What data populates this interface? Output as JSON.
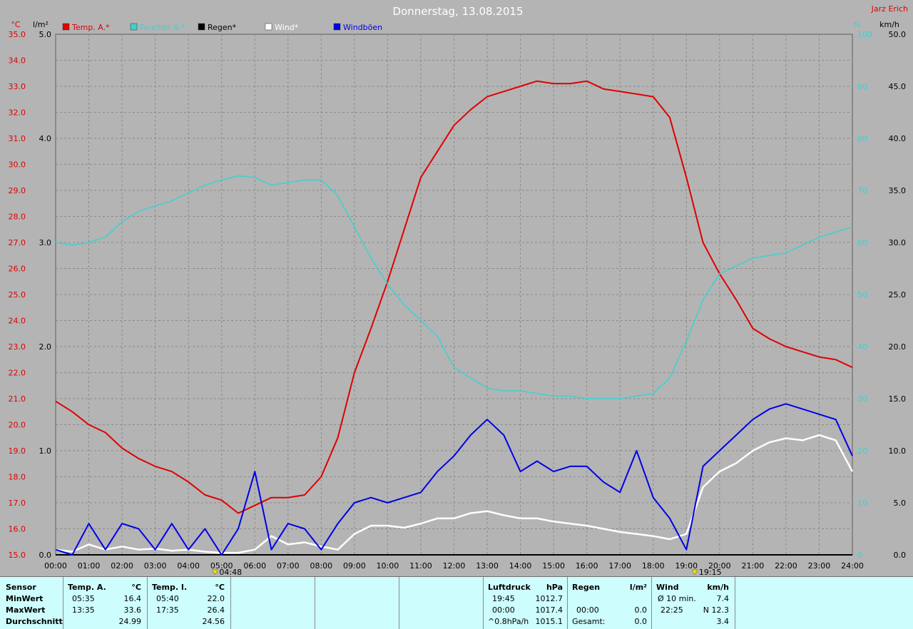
{
  "header": {
    "title": "Donnerstag, 13.08.2015",
    "author": "Jarz Erich",
    "unit_left_outer": "°C",
    "unit_left_inner": "l/m²",
    "unit_right_inner": "%",
    "unit_right_outer": "km/h"
  },
  "colors": {
    "temp": "#e00000",
    "humidity": "#3fd0d0",
    "rain": "#000000",
    "wind": "#ffffff",
    "gusts": "#0000e6",
    "plot_bg": "#b4b4b4",
    "grid": "#8a8a8a"
  },
  "legend": [
    {
      "label": "Temp. A.*",
      "color": "#e00000"
    },
    {
      "label": "Feuchte A.*",
      "color": "#3fd0d0"
    },
    {
      "label": "Regen*",
      "color": "#000000"
    },
    {
      "label": "Wind*",
      "color": "#ffffff"
    },
    {
      "label": "Windböen",
      "color": "#0000e6"
    }
  ],
  "axes": {
    "temp_ticks": [
      "35.0",
      "34.0",
      "33.0",
      "32.0",
      "31.0",
      "30.0",
      "29.0",
      "28.0",
      "27.0",
      "26.0",
      "25.0",
      "24.0",
      "23.0",
      "22.0",
      "21.0",
      "20.0",
      "19.0",
      "18.0",
      "17.0",
      "16.0",
      "15.0"
    ],
    "rain_ticks": [
      "5.0",
      "4.0",
      "3.0",
      "2.0",
      "1.0",
      "0.0"
    ],
    "humidity_ticks": [
      "100",
      "90",
      "80",
      "70",
      "60",
      "50",
      "40",
      "30",
      "20",
      "10",
      "0"
    ],
    "wind_ticks": [
      "50.0",
      "45.0",
      "40.0",
      "35.0",
      "30.0",
      "25.0",
      "20.0",
      "15.0",
      "10.0",
      "5.0",
      "0.0"
    ],
    "hour_labels": [
      "00:00",
      "01:00",
      "02:00",
      "03:00",
      "04:00",
      "05:00",
      "06:00",
      "07:00",
      "08:00",
      "09:00",
      "10:00",
      "11:00",
      "12:00",
      "13:00",
      "14:00",
      "15:00",
      "16:00",
      "17:00",
      "18:00",
      "19:00",
      "20:00",
      "21:00",
      "22:00",
      "23:00",
      "24:00"
    ],
    "sunrise": "04:48",
    "sunset": "19:15"
  },
  "chart_data": {
    "type": "line",
    "title": "Donnerstag, 13.08.2015",
    "x_unit": "hours",
    "x_range": [
      0,
      24
    ],
    "series": [
      {
        "name": "Temp. A.*",
        "unit": "°C",
        "axis": "temp",
        "ylim": [
          15,
          35
        ],
        "points": [
          [
            0,
            20.9
          ],
          [
            0.5,
            20.5
          ],
          [
            1,
            20.0
          ],
          [
            1.5,
            19.7
          ],
          [
            2,
            19.1
          ],
          [
            2.5,
            18.7
          ],
          [
            3,
            18.4
          ],
          [
            3.5,
            18.2
          ],
          [
            4,
            17.8
          ],
          [
            4.5,
            17.3
          ],
          [
            5,
            17.1
          ],
          [
            5.5,
            16.6
          ],
          [
            6,
            16.9
          ],
          [
            6.5,
            17.2
          ],
          [
            7,
            17.2
          ],
          [
            7.5,
            17.3
          ],
          [
            8,
            18.0
          ],
          [
            8.5,
            19.5
          ],
          [
            9,
            22.0
          ],
          [
            9.5,
            23.7
          ],
          [
            10,
            25.5
          ],
          [
            10.5,
            27.5
          ],
          [
            11,
            29.5
          ],
          [
            11.5,
            30.5
          ],
          [
            12,
            31.5
          ],
          [
            12.5,
            32.1
          ],
          [
            13,
            32.6
          ],
          [
            13.5,
            32.8
          ],
          [
            14,
            33.0
          ],
          [
            14.5,
            33.2
          ],
          [
            15,
            33.1
          ],
          [
            15.5,
            33.1
          ],
          [
            16,
            33.2
          ],
          [
            16.5,
            32.9
          ],
          [
            17,
            32.8
          ],
          [
            17.5,
            32.7
          ],
          [
            18,
            32.6
          ],
          [
            18.5,
            31.8
          ],
          [
            19,
            29.5
          ],
          [
            19.5,
            27.0
          ],
          [
            20,
            25.8
          ],
          [
            20.5,
            24.8
          ],
          [
            21,
            23.7
          ],
          [
            21.5,
            23.3
          ],
          [
            22,
            23.0
          ],
          [
            22.5,
            22.8
          ],
          [
            23,
            22.6
          ],
          [
            23.5,
            22.5
          ],
          [
            24,
            22.2
          ]
        ]
      },
      {
        "name": "Feuchte A.*",
        "unit": "%",
        "axis": "humidity",
        "ylim": [
          0,
          100
        ],
        "points": [
          [
            0,
            60
          ],
          [
            0.5,
            59.5
          ],
          [
            1,
            60
          ],
          [
            1.5,
            61
          ],
          [
            2,
            64
          ],
          [
            2.5,
            66
          ],
          [
            3,
            67
          ],
          [
            3.5,
            68
          ],
          [
            4,
            69.5
          ],
          [
            4.5,
            71
          ],
          [
            5,
            72
          ],
          [
            5.5,
            72.8
          ],
          [
            6,
            72.5
          ],
          [
            6.5,
            71
          ],
          [
            7,
            71.5
          ],
          [
            7.5,
            72
          ],
          [
            8,
            72
          ],
          [
            8.5,
            69
          ],
          [
            9,
            63
          ],
          [
            9.5,
            57
          ],
          [
            10,
            52
          ],
          [
            10.5,
            48
          ],
          [
            11,
            45
          ],
          [
            11.5,
            42
          ],
          [
            12,
            36
          ],
          [
            12.5,
            34
          ],
          [
            13,
            32
          ],
          [
            13.5,
            31.5
          ],
          [
            14,
            31.5
          ],
          [
            14.5,
            31
          ],
          [
            15,
            30.5
          ],
          [
            15.5,
            30.5
          ],
          [
            16,
            30
          ],
          [
            16.5,
            30
          ],
          [
            17,
            30
          ],
          [
            17.5,
            30.5
          ],
          [
            18,
            31
          ],
          [
            18.5,
            34
          ],
          [
            19,
            41
          ],
          [
            19.5,
            49
          ],
          [
            20,
            54
          ],
          [
            20.5,
            55.5
          ],
          [
            21,
            57
          ],
          [
            21.5,
            57.5
          ],
          [
            22,
            58
          ],
          [
            22.5,
            59.5
          ],
          [
            23,
            61
          ],
          [
            23.5,
            62
          ],
          [
            24,
            63
          ]
        ]
      },
      {
        "name": "Regen*",
        "unit": "l/m²",
        "axis": "rain",
        "ylim": [
          0,
          5
        ],
        "points": [
          [
            0,
            0
          ],
          [
            24,
            0
          ]
        ]
      },
      {
        "name": "Wind*",
        "unit": "km/h",
        "axis": "wind",
        "ylim": [
          0,
          50
        ],
        "points": [
          [
            0,
            0.5
          ],
          [
            0.5,
            0.3
          ],
          [
            1,
            1.0
          ],
          [
            1.5,
            0.5
          ],
          [
            2,
            0.8
          ],
          [
            2.5,
            0.5
          ],
          [
            3,
            0.6
          ],
          [
            3.5,
            0.4
          ],
          [
            4,
            0.5
          ],
          [
            4.5,
            0.3
          ],
          [
            5,
            0.2
          ],
          [
            5.5,
            0.2
          ],
          [
            6,
            0.5
          ],
          [
            6.5,
            1.8
          ],
          [
            7,
            1.0
          ],
          [
            7.5,
            1.2
          ],
          [
            8,
            0.8
          ],
          [
            8.5,
            0.5
          ],
          [
            9,
            2.0
          ],
          [
            9.5,
            2.8
          ],
          [
            10,
            2.8
          ],
          [
            10.5,
            2.6
          ],
          [
            11,
            3.0
          ],
          [
            11.5,
            3.5
          ],
          [
            12,
            3.5
          ],
          [
            12.5,
            4.0
          ],
          [
            13,
            4.2
          ],
          [
            13.5,
            3.8
          ],
          [
            14,
            3.5
          ],
          [
            14.5,
            3.5
          ],
          [
            15,
            3.2
          ],
          [
            15.5,
            3.0
          ],
          [
            16,
            2.8
          ],
          [
            16.5,
            2.5
          ],
          [
            17,
            2.2
          ],
          [
            17.5,
            2.0
          ],
          [
            18,
            1.8
          ],
          [
            18.5,
            1.5
          ],
          [
            19,
            2.0
          ],
          [
            19.5,
            6.5
          ],
          [
            20,
            8.0
          ],
          [
            20.5,
            8.8
          ],
          [
            21,
            10.0
          ],
          [
            21.5,
            10.8
          ],
          [
            22,
            11.2
          ],
          [
            22.5,
            11.0
          ],
          [
            23,
            11.5
          ],
          [
            23.5,
            11.0
          ],
          [
            24,
            8.0
          ]
        ]
      },
      {
        "name": "Windböen",
        "unit": "km/h",
        "axis": "wind",
        "ylim": [
          0,
          50
        ],
        "points": [
          [
            0,
            0.5
          ],
          [
            0.5,
            0
          ],
          [
            1,
            3.0
          ],
          [
            1.5,
            0.5
          ],
          [
            2,
            3.0
          ],
          [
            2.5,
            2.5
          ],
          [
            3,
            0.5
          ],
          [
            3.5,
            3.0
          ],
          [
            4,
            0.5
          ],
          [
            4.5,
            2.5
          ],
          [
            5,
            0
          ],
          [
            5.5,
            2.5
          ],
          [
            6,
            8.0
          ],
          [
            6.5,
            0.5
          ],
          [
            7,
            3.0
          ],
          [
            7.5,
            2.5
          ],
          [
            8,
            0.5
          ],
          [
            8.5,
            3.0
          ],
          [
            9,
            5.0
          ],
          [
            9.5,
            5.5
          ],
          [
            10,
            5.0
          ],
          [
            10.5,
            5.5
          ],
          [
            11,
            6.0
          ],
          [
            11.5,
            8.0
          ],
          [
            12,
            9.5
          ],
          [
            12.5,
            11.5
          ],
          [
            13,
            13.0
          ],
          [
            13.5,
            11.5
          ],
          [
            14,
            8.0
          ],
          [
            14.5,
            9.0
          ],
          [
            15,
            8.0
          ],
          [
            15.5,
            8.5
          ],
          [
            16,
            8.5
          ],
          [
            16.5,
            7.0
          ],
          [
            17,
            6.0
          ],
          [
            17.5,
            10.0
          ],
          [
            18,
            5.5
          ],
          [
            18.5,
            3.5
          ],
          [
            19,
            0.5
          ],
          [
            19.5,
            8.5
          ],
          [
            20,
            10.0
          ],
          [
            20.5,
            11.5
          ],
          [
            21,
            13.0
          ],
          [
            21.5,
            14.0
          ],
          [
            22,
            14.5
          ],
          [
            22.5,
            14.0
          ],
          [
            23,
            13.5
          ],
          [
            23.5,
            13.0
          ],
          [
            24,
            9.5
          ]
        ]
      }
    ]
  },
  "table": {
    "s1": {
      "title": "Sensor",
      "min": "MinWert",
      "max": "MaxWert",
      "avg": "Durchschnitt"
    },
    "s2": {
      "title": "Temp. A.",
      "unit": "°C",
      "min_time": "05:35",
      "min_val": "16.4",
      "max_time": "13:35",
      "max_val": "33.6",
      "avg_val": "24.99"
    },
    "s3": {
      "title": "Temp. I.",
      "unit": "°C",
      "min_time": "05:40",
      "min_val": "22.0",
      "max_time": "17:35",
      "max_val": "26.4",
      "avg_val": "24.56"
    },
    "s4": {
      "title": "Luftdruck",
      "unit": "hPa",
      "r1_label": "19:45",
      "r1_val": "1012.7",
      "r2_label": "00:00",
      "r2_val": "1017.4",
      "r3_label": "^0.8hPa/h",
      "r3_val": "1015.1"
    },
    "s5": {
      "title": "Regen",
      "unit": "l/m²",
      "r2_label": "00:00",
      "r2_val": "0.0",
      "r3_label": "Gesamt:",
      "r3_val": "0.0"
    },
    "s6": {
      "title": "Wind",
      "unit": "km/h",
      "r1_label": "Ø 10 min.",
      "r1_val": "7.4",
      "r2_label": "22:25",
      "r2_val": "N 12.3",
      "r3_val": "3.4"
    }
  }
}
